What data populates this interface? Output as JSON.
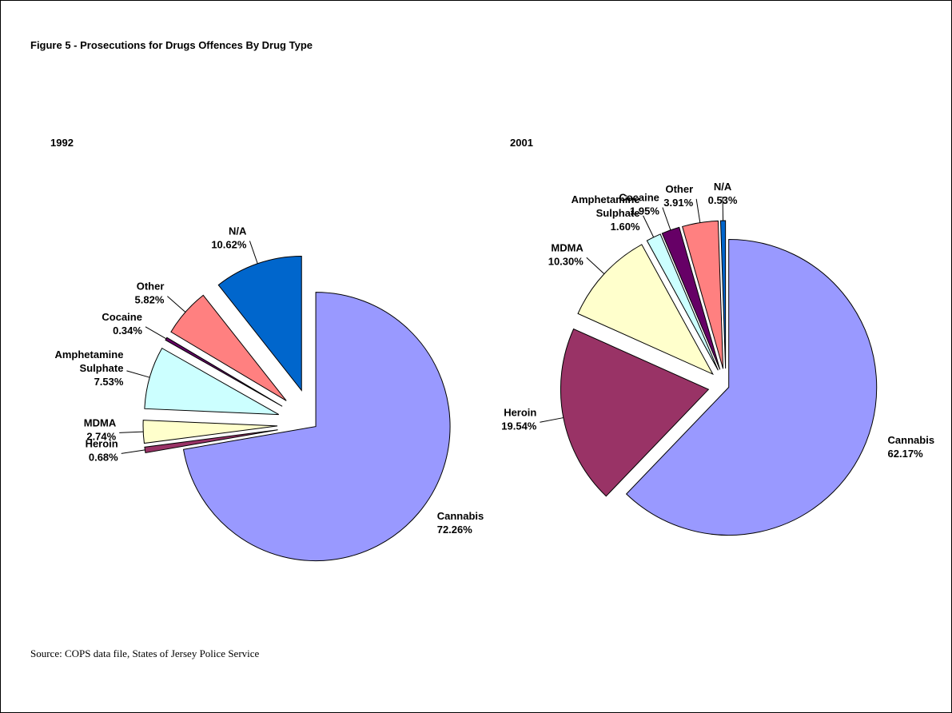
{
  "title": "Figure 5 - Prosecutions for Drugs Offences By Drug Type",
  "source": "Source: COPS data file, States of Jersey Police Service",
  "chart_data": [
    {
      "type": "pie",
      "title": "1992",
      "categories": [
        "Cannabis",
        "Heroin",
        "MDMA",
        "Amphetamine Sulphate",
        "Cocaine",
        "Other",
        "N/A"
      ],
      "values": [
        72.26,
        0.68,
        2.74,
        7.53,
        0.34,
        5.82,
        10.62
      ],
      "value_labels": [
        "72.26%",
        "0.68%",
        "2.74%",
        "7.53%",
        "0.34%",
        "5.82%",
        "10.62%"
      ],
      "colors": [
        "#9999ff",
        "#993366",
        "#ffffcc",
        "#ccffff",
        "#660066",
        "#ff8080",
        "#0066cc"
      ]
    },
    {
      "type": "pie",
      "title": "2001",
      "categories": [
        "Cannabis",
        "Heroin",
        "MDMA",
        "Amphetamine Sulphate",
        "Cocaine",
        "Other",
        "N/A"
      ],
      "values": [
        62.17,
        19.54,
        10.3,
        1.6,
        1.95,
        3.91,
        0.53
      ],
      "value_labels": [
        "62.17%",
        "19.54%",
        "10.30%",
        "1.60%",
        "1.95%",
        "3.91%",
        "0.53%"
      ],
      "colors": [
        "#9999ff",
        "#993366",
        "#ffffcc",
        "#ccffff",
        "#660066",
        "#ff8080",
        "#0066cc"
      ]
    }
  ]
}
